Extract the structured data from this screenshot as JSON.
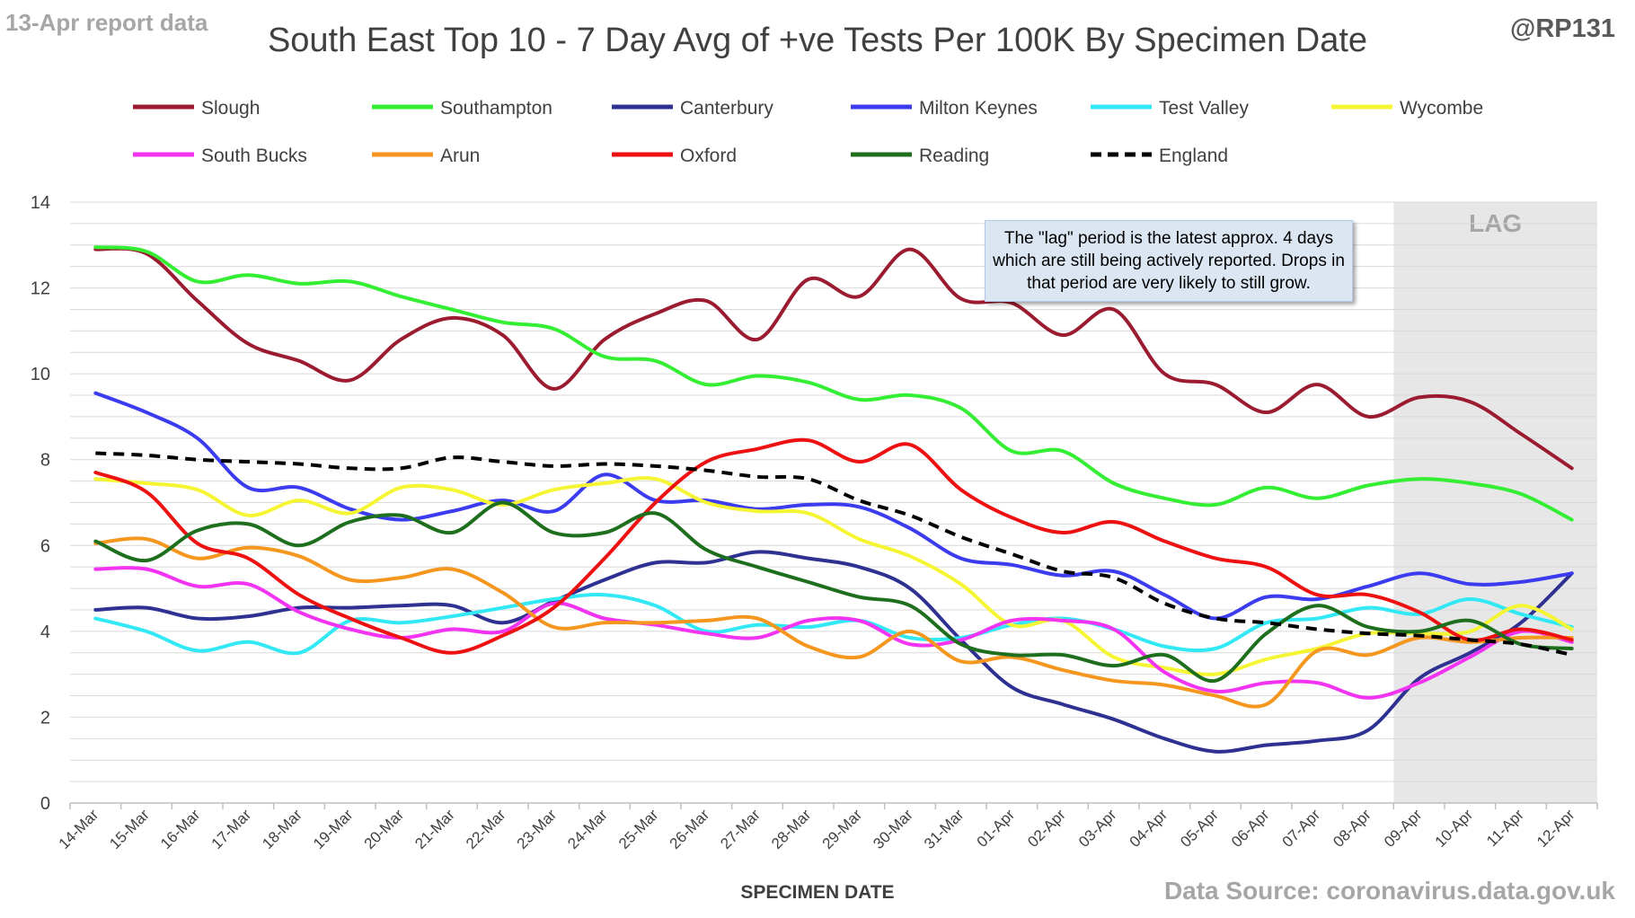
{
  "header": {
    "report_note": "13-Apr report data",
    "handle": "@RP131",
    "source": "Data Source: coronavirus.data.gov.uk"
  },
  "annotation": "The \"lag\" period is the latest approx. 4 days which are still being actively reported. Drops in that period are very likely to still grow.",
  "colors": {
    "lag_shade": "#e7e7e7",
    "gridline": "#d9d9d9",
    "axis_text": "#404040"
  },
  "chart_data": {
    "type": "line",
    "title": "South East Top 10 - 7 Day Avg of +ve Tests Per 100K By Specimen Date",
    "xlabel": "SPECIMEN DATE",
    "ylabel": "",
    "ylim": [
      0,
      14
    ],
    "yticks": [
      0,
      2,
      4,
      6,
      8,
      10,
      12,
      14
    ],
    "grid": "horizontal",
    "legend_position": "top",
    "lag_label": "LAG",
    "lag_start": "09-Apr",
    "lag_end": "12-Apr",
    "categories": [
      "14-Mar",
      "15-Mar",
      "16-Mar",
      "17-Mar",
      "18-Mar",
      "19-Mar",
      "20-Mar",
      "21-Mar",
      "22-Mar",
      "23-Mar",
      "24-Mar",
      "25-Mar",
      "26-Mar",
      "27-Mar",
      "28-Mar",
      "29-Mar",
      "30-Mar",
      "31-Mar",
      "01-Apr",
      "02-Apr",
      "03-Apr",
      "04-Apr",
      "05-Apr",
      "06-Apr",
      "07-Apr",
      "08-Apr",
      "09-Apr",
      "10-Apr",
      "11-Apr",
      "12-Apr"
    ],
    "series": [
      {
        "name": "Slough",
        "color": "#9b1b30",
        "dash": false,
        "values": [
          12.9,
          12.8,
          11.7,
          10.7,
          10.3,
          9.85,
          10.8,
          11.3,
          10.9,
          9.65,
          10.8,
          11.4,
          11.7,
          10.8,
          12.2,
          11.8,
          12.9,
          11.75,
          11.65,
          10.9,
          11.5,
          10.0,
          9.75,
          9.1,
          9.75,
          9.0,
          9.45,
          9.35,
          8.6,
          7.8
        ]
      },
      {
        "name": "Southampton",
        "color": "#33ee33",
        "dash": false,
        "values": [
          12.95,
          12.85,
          12.15,
          12.3,
          12.1,
          12.15,
          11.8,
          11.5,
          11.2,
          11.05,
          10.4,
          10.3,
          9.75,
          9.95,
          9.8,
          9.4,
          9.5,
          9.2,
          8.2,
          8.2,
          7.45,
          7.1,
          6.95,
          7.35,
          7.1,
          7.4,
          7.55,
          7.45,
          7.2,
          6.6
        ]
      },
      {
        "name": "Canterbury",
        "color": "#2e3192",
        "dash": false,
        "values": [
          4.5,
          4.55,
          4.3,
          4.35,
          4.55,
          4.55,
          4.6,
          4.6,
          4.2,
          4.7,
          5.2,
          5.6,
          5.6,
          5.85,
          5.7,
          5.5,
          5.0,
          3.8,
          2.7,
          2.3,
          1.95,
          1.5,
          1.2,
          1.35,
          1.45,
          1.7,
          2.9,
          3.5,
          4.2,
          5.35
        ]
      },
      {
        "name": "Milton Keynes",
        "color": "#3b3bf0",
        "dash": false,
        "values": [
          9.55,
          9.1,
          8.5,
          7.35,
          7.35,
          6.85,
          6.6,
          6.8,
          7.05,
          6.8,
          7.65,
          7.05,
          7.05,
          6.85,
          6.95,
          6.9,
          6.4,
          5.7,
          5.55,
          5.3,
          5.4,
          4.85,
          4.3,
          4.8,
          4.75,
          5.05,
          5.35,
          5.1,
          5.15,
          5.35
        ]
      },
      {
        "name": "Test Valley",
        "color": "#33e8f5",
        "dash": false,
        "values": [
          4.3,
          4.0,
          3.55,
          3.75,
          3.5,
          4.25,
          4.2,
          4.35,
          4.55,
          4.75,
          4.85,
          4.6,
          4.0,
          4.15,
          4.1,
          4.25,
          3.85,
          3.85,
          4.15,
          4.3,
          4.05,
          3.65,
          3.6,
          4.2,
          4.3,
          4.55,
          4.4,
          4.75,
          4.4,
          4.1
        ]
      },
      {
        "name": "Wycombe",
        "color": "#f5f533",
        "dash": false,
        "values": [
          7.55,
          7.45,
          7.3,
          6.7,
          7.05,
          6.75,
          7.35,
          7.3,
          6.95,
          7.3,
          7.45,
          7.55,
          7.0,
          6.8,
          6.75,
          6.15,
          5.75,
          5.1,
          4.15,
          4.25,
          3.4,
          3.15,
          3.0,
          3.35,
          3.6,
          3.95,
          3.95,
          4.0,
          4.6,
          4.05
        ]
      },
      {
        "name": "South Bucks",
        "color": "#f233f2",
        "dash": false,
        "values": [
          5.45,
          5.45,
          5.05,
          5.1,
          4.45,
          4.05,
          3.85,
          4.05,
          4.0,
          4.65,
          4.3,
          4.15,
          3.95,
          3.85,
          4.25,
          4.25,
          3.7,
          3.8,
          4.25,
          4.25,
          4.05,
          3.05,
          2.6,
          2.8,
          2.8,
          2.45,
          2.8,
          3.4,
          4.0,
          3.75
        ]
      },
      {
        "name": "Arun",
        "color": "#f5961e",
        "dash": false,
        "values": [
          6.05,
          6.15,
          5.7,
          5.95,
          5.75,
          5.2,
          5.25,
          5.45,
          4.9,
          4.1,
          4.2,
          4.2,
          4.25,
          4.3,
          3.65,
          3.4,
          4.0,
          3.3,
          3.4,
          3.1,
          2.85,
          2.75,
          2.5,
          2.3,
          3.55,
          3.45,
          3.85,
          3.75,
          3.85,
          3.85
        ]
      },
      {
        "name": "Oxford",
        "color": "#ee1111",
        "dash": false,
        "values": [
          7.7,
          7.25,
          6.05,
          5.7,
          4.85,
          4.3,
          3.85,
          3.5,
          3.9,
          4.55,
          5.7,
          7.0,
          7.95,
          8.25,
          8.45,
          7.95,
          8.35,
          7.3,
          6.65,
          6.3,
          6.55,
          6.1,
          5.7,
          5.5,
          4.85,
          4.85,
          4.45,
          3.8,
          4.05,
          3.8
        ]
      },
      {
        "name": "Reading",
        "color": "#1d6e1d",
        "dash": false,
        "values": [
          6.1,
          5.65,
          6.35,
          6.5,
          6.0,
          6.55,
          6.7,
          6.3,
          7.0,
          6.3,
          6.3,
          6.75,
          5.9,
          5.5,
          5.15,
          4.8,
          4.6,
          3.7,
          3.45,
          3.45,
          3.2,
          3.45,
          2.85,
          3.95,
          4.6,
          4.1,
          4.0,
          4.25,
          3.7,
          3.6
        ]
      },
      {
        "name": "England",
        "color": "#000000",
        "dash": true,
        "values": [
          8.15,
          8.1,
          8.0,
          7.95,
          7.9,
          7.8,
          7.8,
          8.05,
          7.95,
          7.85,
          7.9,
          7.85,
          7.75,
          7.6,
          7.55,
          7.05,
          6.7,
          6.2,
          5.8,
          5.4,
          5.25,
          4.65,
          4.3,
          4.2,
          4.05,
          3.95,
          3.9,
          3.8,
          3.7,
          3.45
        ]
      }
    ]
  }
}
